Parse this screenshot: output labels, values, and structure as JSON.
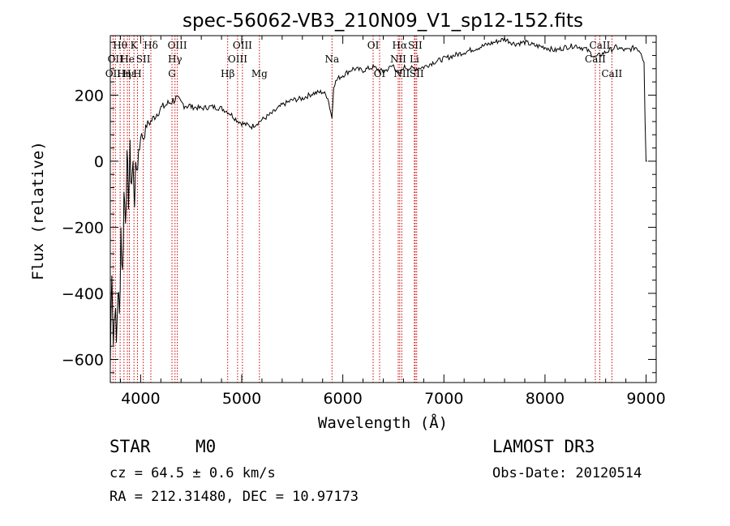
{
  "chart_data": {
    "type": "line",
    "title": "spec-56062-VB3_210N09_V1_sp12-152.fits",
    "xlabel": "Wavelength (Å)",
    "ylabel": "Flux (relative)",
    "xlim": [
      3700,
      9100
    ],
    "ylim": [
      -670,
      380
    ],
    "x_ticks": [
      4000,
      5000,
      6000,
      7000,
      8000,
      9000
    ],
    "y_ticks": [
      -600,
      -400,
      -200,
      0,
      200
    ],
    "grid": false,
    "legend": "none",
    "series": [
      {
        "x": [
          3700,
          3715,
          3730,
          3745,
          3760,
          3775,
          3790,
          3805,
          3820,
          3835,
          3850,
          3865,
          3880,
          3895,
          3910,
          3925,
          3940,
          3960,
          3980,
          4000,
          4030,
          4060,
          4100,
          4150,
          4200,
          4250,
          4300,
          4350,
          4400,
          4500,
          4600,
          4700,
          4800,
          4860,
          4900,
          4950,
          5000,
          5050,
          5100,
          5150,
          5200,
          5300,
          5400,
          5500,
          5600,
          5700,
          5800,
          5850,
          5880,
          5893,
          5910,
          5950,
          6000,
          6100,
          6200,
          6300,
          6400,
          6500,
          6563,
          6600,
          6700,
          6800,
          6900,
          7000,
          7100,
          7200,
          7300,
          7400,
          7500,
          7600,
          7700,
          7800,
          7900,
          8000,
          8100,
          8200,
          8300,
          8400,
          8500,
          8600,
          8700,
          8800,
          8900,
          8950,
          8980,
          8990,
          9000,
          9010
        ],
        "y": [
          -620,
          -300,
          -550,
          -420,
          -560,
          -380,
          -480,
          -200,
          -350,
          -100,
          -150,
          -20,
          -100,
          10,
          -60,
          -20,
          -100,
          -20,
          30,
          80,
          70,
          110,
          120,
          140,
          160,
          170,
          180,
          190,
          175,
          165,
          160,
          165,
          160,
          150,
          140,
          125,
          115,
          110,
          105,
          115,
          125,
          145,
          170,
          185,
          190,
          205,
          210,
          195,
          150,
          130,
          230,
          250,
          260,
          280,
          275,
          285,
          270,
          290,
          260,
          285,
          280,
          285,
          300,
          310,
          320,
          330,
          340,
          350,
          360,
          370,
          355,
          360,
          350,
          345,
          335,
          345,
          350,
          340,
          315,
          330,
          345,
          335,
          345,
          330,
          300,
          120,
          0,
          0
        ]
      }
    ],
    "lines": [
      {
        "wl": 3727,
        "label": "OII",
        "row": 3
      },
      {
        "wl": 3750,
        "label": "OII",
        "row": 2
      },
      {
        "wl": 3797,
        "label": "Hθ",
        "row": 1
      },
      {
        "wl": 3835,
        "label": "Hη",
        "row": 3
      },
      {
        "wl": 3869,
        "label": "He",
        "row": 2
      },
      {
        "wl": 3889,
        "label": "Hε",
        "row": 3
      },
      {
        "wl": 3934,
        "label": "K",
        "row": 1
      },
      {
        "wl": 3969,
        "label": "H",
        "row": 3
      },
      {
        "wl": 4026,
        "label": "SII",
        "row": 2
      },
      {
        "wl": 4101,
        "label": "Hδ",
        "row": 1
      },
      {
        "wl": 4340,
        "label": "Hγ",
        "row": 2
      },
      {
        "wl": 4310,
        "label": "G",
        "row": 3
      },
      {
        "wl": 4363,
        "label": "OIII",
        "row": 1
      },
      {
        "wl": 4861,
        "label": "Hβ",
        "row": 3
      },
      {
        "wl": 4959,
        "label": "OIII",
        "row": 2
      },
      {
        "wl": 5007,
        "label": "OIII",
        "row": 1
      },
      {
        "wl": 5175,
        "label": "Mg",
        "row": 3
      },
      {
        "wl": 5893,
        "label": "Na",
        "row": 2
      },
      {
        "wl": 6300,
        "label": "OI",
        "row": 1
      },
      {
        "wl": 6364,
        "label": "OI",
        "row": 3
      },
      {
        "wl": 6548,
        "label": "NII",
        "row": 2
      },
      {
        "wl": 6563,
        "label": "Hα",
        "row": 1
      },
      {
        "wl": 6583,
        "label": "NII",
        "row": 3
      },
      {
        "wl": 6708,
        "label": "Li",
        "row": 2
      },
      {
        "wl": 6716,
        "label": "SII",
        "row": 1
      },
      {
        "wl": 6731,
        "label": "SII",
        "row": 3
      },
      {
        "wl": 8498,
        "label": "CaII",
        "row": 2
      },
      {
        "wl": 8542,
        "label": "CaII",
        "row": 1
      },
      {
        "wl": 8662,
        "label": "CaII",
        "row": 3
      }
    ]
  },
  "info": {
    "class": "STAR",
    "subclass": "M0",
    "survey": "LAMOST DR3",
    "cz": "cz = 64.5 ± 0.6 km/s",
    "obsdate": "Obs-Date: 20120514",
    "coords": "RA = 212.31480, DEC =  10.97173"
  }
}
